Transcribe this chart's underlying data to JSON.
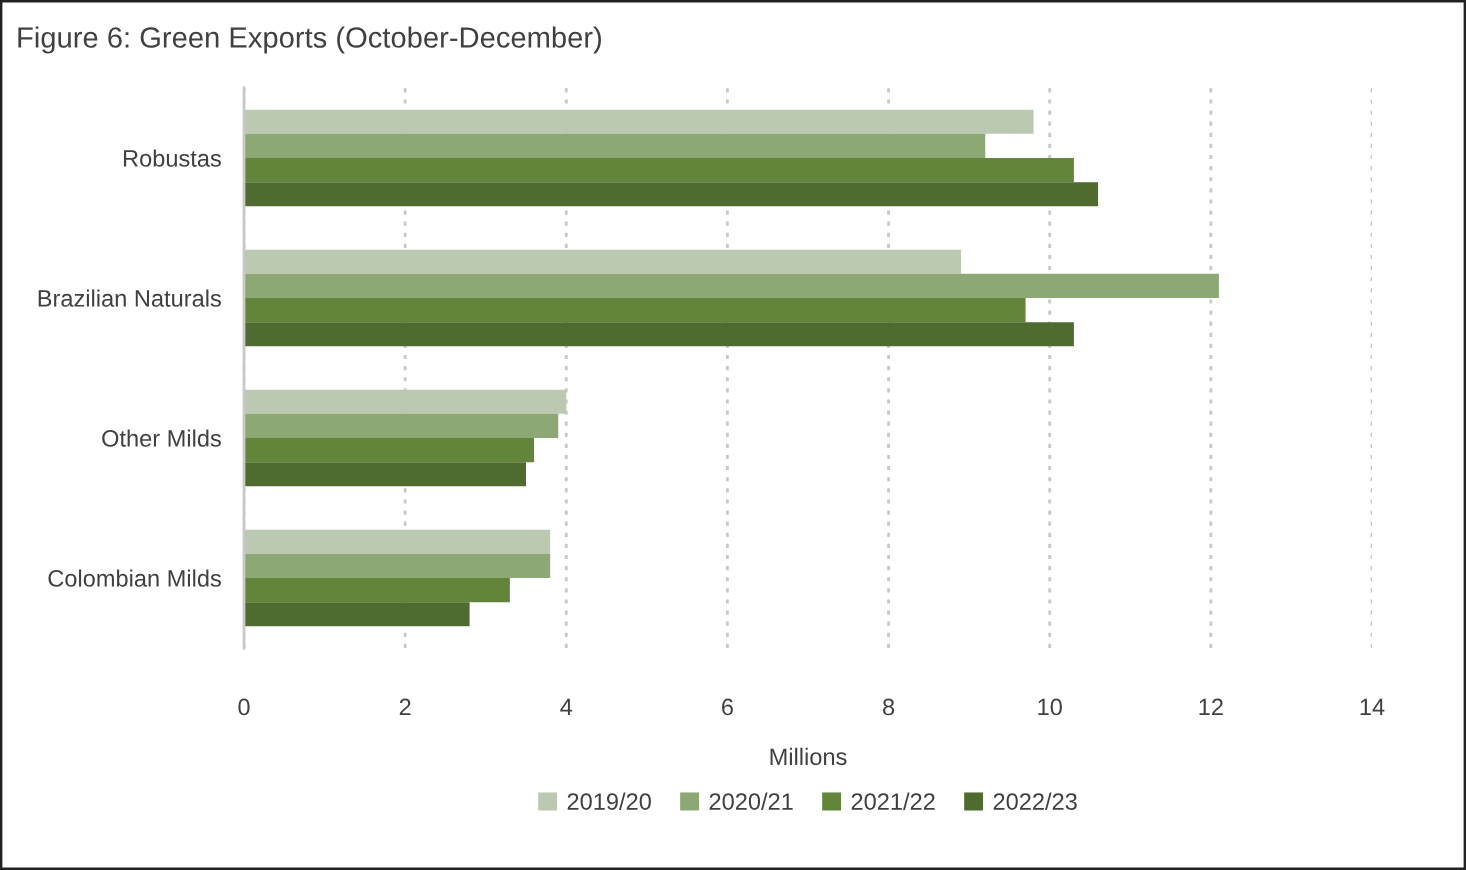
{
  "chart_data": {
    "type": "bar",
    "orientation": "horizontal",
    "title": "Figure 6: Green Exports (October-December)",
    "xlabel": "Millions",
    "categories": [
      "Robustas",
      "Brazilian Naturals",
      "Other Milds",
      "Colombian Milds"
    ],
    "series": [
      {
        "name": "2019/20",
        "color": "#bcc9b2",
        "values": [
          9.8,
          8.9,
          4.0,
          3.8
        ]
      },
      {
        "name": "2020/21",
        "color": "#8da874",
        "values": [
          9.2,
          12.1,
          3.9,
          3.8
        ]
      },
      {
        "name": "2021/22",
        "color": "#63853b",
        "values": [
          10.3,
          9.7,
          3.6,
          3.3
        ]
      },
      {
        "name": "2022/23",
        "color": "#4f6b2f",
        "values": [
          10.6,
          10.3,
          3.5,
          2.8
        ]
      }
    ],
    "xlim": [
      0,
      14
    ],
    "xticks": [
      0,
      2,
      4,
      6,
      8,
      10,
      12,
      14
    ],
    "grid": "x",
    "legend": "bottom"
  }
}
